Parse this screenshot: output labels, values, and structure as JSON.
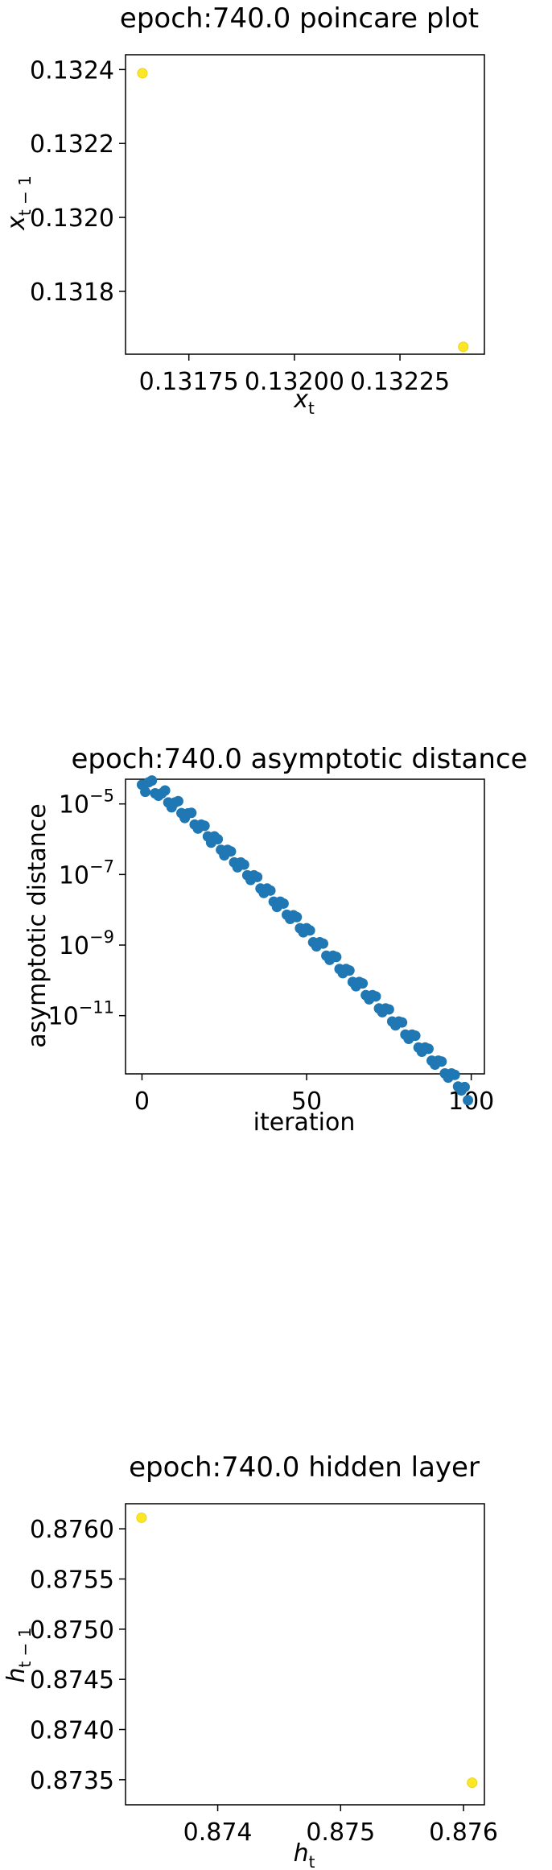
{
  "chart_data": [
    {
      "type": "scatter",
      "title": "epoch:740.0 poincare plot",
      "xlabel": {
        "base": "x",
        "sub": "t"
      },
      "ylabel": {
        "base": "x",
        "sub": "t − 1"
      },
      "xlim": [
        0.1316,
        0.13245
      ],
      "ylim": [
        0.13163,
        0.13244
      ],
      "xticks": [
        {
          "v": 0.13175,
          "label": "0.13175"
        },
        {
          "v": 0.132,
          "label": "0.13200"
        },
        {
          "v": 0.13225,
          "label": "0.13225"
        }
      ],
      "yticks": [
        {
          "v": 0.1318,
          "label": "0.1318"
        },
        {
          "v": 0.132,
          "label": "0.1320"
        },
        {
          "v": 0.1322,
          "label": "0.1322"
        },
        {
          "v": 0.1324,
          "label": "0.1324"
        }
      ],
      "points": [
        {
          "x": 0.13164,
          "y": 0.13239
        },
        {
          "x": 0.1324,
          "y": 0.13165
        }
      ],
      "point_color": "#fde725",
      "point_edge": "#e8d21c"
    },
    {
      "type": "scatter",
      "yscale": "log",
      "title": "epoch:740.0 asymptotic distance",
      "xlabel": "iteration",
      "ylabel": "asymptotic distance",
      "xlim": [
        -5,
        104
      ],
      "ylim_log10": [
        -12.65,
        -4.3
      ],
      "xticks": [
        {
          "v": 0,
          "label": "0"
        },
        {
          "v": 50,
          "label": "50"
        },
        {
          "v": 100,
          "label": "100"
        }
      ],
      "yticks": [
        {
          "exp": -5,
          "base": "10",
          "sup": "−5"
        },
        {
          "exp": -7,
          "base": "10",
          "sup": "−7"
        },
        {
          "exp": -9,
          "base": "10",
          "sup": "−9"
        },
        {
          "exp": -11,
          "base": "10",
          "sup": "−11"
        }
      ],
      "x": [
        0,
        1,
        2,
        3,
        4,
        5,
        6,
        7,
        8,
        9,
        10,
        11,
        12,
        13,
        14,
        15,
        16,
        17,
        18,
        19,
        20,
        21,
        22,
        23,
        24,
        25,
        26,
        27,
        28,
        29,
        30,
        31,
        32,
        33,
        34,
        35,
        36,
        37,
        38,
        39,
        40,
        41,
        42,
        43,
        44,
        45,
        46,
        47,
        48,
        49,
        50,
        51,
        52,
        53,
        54,
        55,
        56,
        57,
        58,
        59,
        60,
        61,
        62,
        63,
        64,
        65,
        66,
        67,
        68,
        69,
        70,
        71,
        72,
        73,
        74,
        75,
        76,
        77,
        78,
        79,
        80,
        81,
        82,
        83,
        84,
        85,
        86,
        87,
        88,
        89,
        90,
        91,
        92,
        93,
        94,
        95,
        96,
        97,
        98,
        99
      ],
      "y": [
        3.5e-05,
        2.2e-05,
        4.1e-05,
        4.6e-05,
        2e-05,
        1.7e-05,
        2e-05,
        2.4e-05,
        1.1e-05,
        8e-06,
        1.1e-05,
        1.2e-05,
        5.5e-06,
        4e-06,
        5.4e-06,
        5.6e-06,
        2.6e-06,
        2e-06,
        2.6e-06,
        2.4e-06,
        1.2e-06,
        8e-07,
        1.2e-06,
        1e-06,
        5e-07,
        3.5e-07,
        5e-07,
        4.5e-07,
        2.2e-07,
        1.6e-07,
        2.2e-07,
        1.9e-07,
        9.5e-08,
        7e-08,
        9.5e-08,
        8.5e-08,
        4e-08,
        3e-08,
        4e-08,
        3.5e-08,
        1.7e-08,
        1.2e-08,
        1.7e-08,
        1.5e-08,
        7.2e-09,
        5.5e-09,
        7e-09,
        6.2e-09,
        3e-09,
        2.3e-09,
        3e-09,
        2.6e-09,
        1.2e-09,
        9.2e-10,
        1.2e-09,
        1.1e-09,
        5e-10,
        3.8e-10,
        5e-10,
        4.6e-10,
        2.1e-10,
        1.6e-10,
        2.1e-10,
        1.9e-10,
        9e-11,
        6.8e-11,
        9e-11,
        8.2e-11,
        3.8e-11,
        2.9e-11,
        3.8e-11,
        3.5e-11,
        1.6e-11,
        1.25e-11,
        1.6e-11,
        1.5e-11,
        6.8e-12,
        5.3e-12,
        6.8e-12,
        6.4e-12,
        2.9e-12,
        2.2e-12,
        2.9e-12,
        2.7e-12,
        1.25e-12,
        9.5e-13,
        1.25e-12,
        1.15e-12,
        5.3e-13,
        4.1e-13,
        5.3e-13,
        5e-13,
        2.3e-13,
        1.75e-13,
        2.3e-13,
        2.1e-13,
        9.8e-14,
        7.6e-14,
        9.5e-14,
        4e-14
      ],
      "point_color": "#1f77b4"
    },
    {
      "type": "scatter",
      "title": "epoch:740.0 hidden layer",
      "xlabel": {
        "base": "h",
        "sub": "t"
      },
      "ylabel": {
        "base": "h",
        "sub": "t − 1"
      },
      "xlim": [
        0.87325,
        0.87617
      ],
      "ylim": [
        0.87325,
        0.87625
      ],
      "xticks": [
        {
          "v": 0.874,
          "label": "0.874"
        },
        {
          "v": 0.875,
          "label": "0.875"
        },
        {
          "v": 0.876,
          "label": "0.876"
        }
      ],
      "yticks": [
        {
          "v": 0.8735,
          "label": "0.8735"
        },
        {
          "v": 0.874,
          "label": "0.8740"
        },
        {
          "v": 0.8745,
          "label": "0.8745"
        },
        {
          "v": 0.875,
          "label": "0.8750"
        },
        {
          "v": 0.8755,
          "label": "0.8755"
        },
        {
          "v": 0.876,
          "label": "0.8760"
        }
      ],
      "points": [
        {
          "x": 0.87338,
          "y": 0.87611
        },
        {
          "x": 0.87607,
          "y": 0.87347
        }
      ],
      "point_color": "#fde725",
      "point_edge": "#e8d21c"
    }
  ]
}
